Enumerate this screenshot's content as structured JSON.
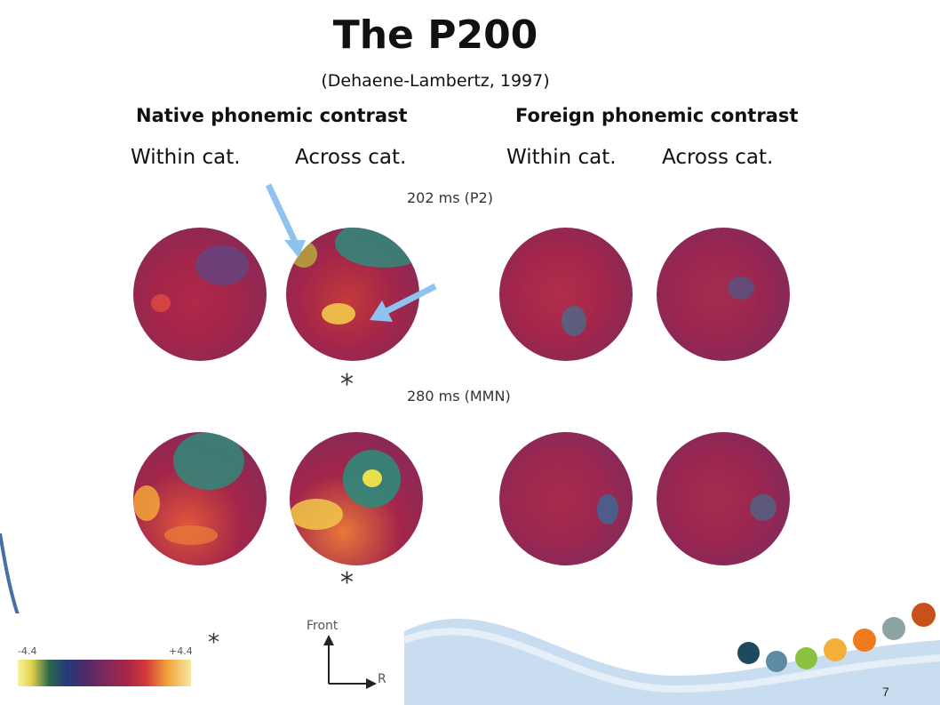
{
  "slide": {
    "title": "The P200",
    "subtitle": "(Dehaene-Lambertz, 1997)",
    "groups": [
      "Native phonemic contrast",
      "Foreign phonemic contrast"
    ],
    "conditions": [
      "Within cat.",
      "Across cat.",
      "Within cat.",
      "Across cat."
    ],
    "times": [
      "202 ms (P2)",
      "280 ms (MMN)"
    ],
    "star": "*",
    "scale": {
      "min": "-4.4",
      "max": "+4.4",
      "star": "*"
    },
    "orientation": {
      "front": "Front",
      "right": "R"
    },
    "page_number": "7"
  },
  "colors": {
    "map_base": "#a3264a",
    "map_dark": "#6e2a6e",
    "map_teal": "#2f8a7a",
    "map_yellow": "#f2c84a",
    "arrow": "#8ec3f0",
    "dots": [
      "#1d4a5e",
      "#5f8aa3",
      "#8cc13f",
      "#f3b13a",
      "#ee7b1f",
      "#8aa3a3",
      "#c8501a"
    ],
    "wave": "#c9ddf0"
  }
}
